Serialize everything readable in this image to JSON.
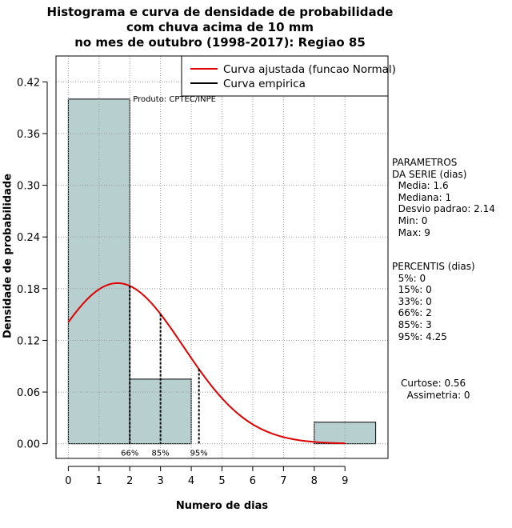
{
  "chart_data": {
    "type": "bar",
    "title_lines": [
      "Histograma e curva de densidade de probabilidade",
      "com chuva acima de 10 mm",
      "no mes de outubro (1998-2017): Regiao 85"
    ],
    "xlabel": "Numero de dias",
    "ylabel": "Densidade de probabilidade",
    "xlim": [
      -0.4,
      10.4
    ],
    "ylim": [
      -0.017,
      0.45
    ],
    "x_ticks": [
      0,
      1,
      2,
      3,
      4,
      5,
      6,
      7,
      8,
      9
    ],
    "y_ticks": [
      0.0,
      0.06,
      0.12,
      0.18,
      0.24,
      0.3,
      0.36,
      0.42
    ],
    "y_tick_labels": [
      "0.00",
      "0.06",
      "0.12",
      "0.18",
      "0.24",
      "0.30",
      "0.36",
      "0.42"
    ],
    "grid": true,
    "bars": [
      {
        "x0": 0,
        "x1": 2,
        "density": 0.4
      },
      {
        "x0": 2,
        "x1": 4,
        "density": 0.075
      },
      {
        "x0": 4,
        "x1": 6,
        "density": 0.0
      },
      {
        "x0": 6,
        "x1": 8,
        "density": 0.0
      },
      {
        "x0": 8,
        "x1": 10,
        "density": 0.025
      }
    ],
    "bar_color": "#b7cfcf",
    "fitted_curve": {
      "label": "Curva ajustada (funcao Normal)",
      "mean": 1.6,
      "sd": 2.14,
      "x_range": [
        0,
        9
      ],
      "color": "#e00000"
    },
    "empirical_curve": {
      "label": "Curva empirica",
      "color": "#000000"
    },
    "percentile_markers": [
      {
        "label": "66%",
        "x": 2
      },
      {
        "label": "85%",
        "x": 3
      },
      {
        "label": "95%",
        "x": 4.25
      }
    ],
    "legend_position": "top-right",
    "annotation": "Produto: CPTEC/INPE"
  },
  "stats_panel": {
    "parametros": "PARAMETROS\nDA SERIE (dias)\n  Media: 1.6\n  Mediana: 1\n  Desvio padrao: 2.14\n  Min: 0\n  Max: 9",
    "percentis": "PERCENTIS (dias)\n  5%: 0\n  15%: 0\n  33%: 0\n  66%: 2\n  85%: 3\n  95%: 4.25",
    "extra": "Curtose: 0.56\n  Assimetria: 0"
  }
}
